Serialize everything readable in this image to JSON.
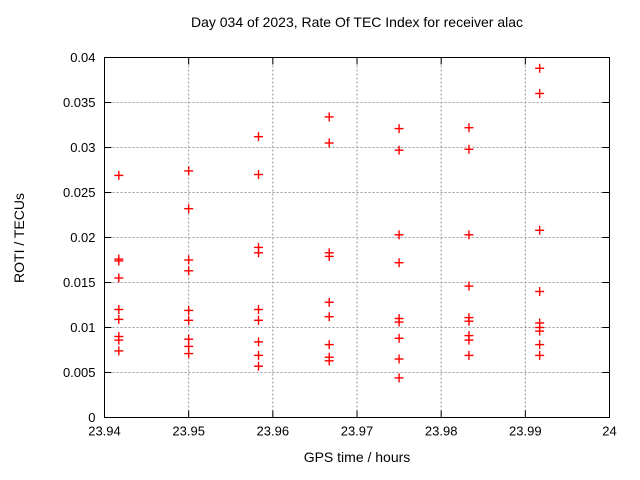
{
  "chart_data": {
    "type": "scatter",
    "title": "Day 034 of 2023, Rate Of TEC Index for receiver alac",
    "xlabel": "GPS time / hours",
    "ylabel": "ROTI / TECUs",
    "xlim": [
      23.94,
      24
    ],
    "ylim": [
      0,
      0.04
    ],
    "xticks": {
      "values": [
        23.94,
        23.95,
        23.96,
        23.97,
        23.98,
        23.99,
        24
      ],
      "labels": [
        "23.94",
        "23.95",
        "23.96",
        "23.97",
        "23.98",
        "23.99",
        "24"
      ]
    },
    "yticks": {
      "values": [
        0,
        0.005,
        0.01,
        0.015,
        0.02,
        0.025,
        0.03,
        0.035,
        0.04
      ],
      "labels": [
        "0",
        "0.005",
        "0.01",
        "0.015",
        "0.02",
        "0.025",
        "0.03",
        "0.035",
        "0.04"
      ]
    },
    "grid": true,
    "legend": "none",
    "marker": "plus",
    "marker_color": "#ff0000",
    "grid_color": "#989898",
    "axis_color": "#000000",
    "series": [
      {
        "name": "ROTI",
        "points": [
          [
            23.9417,
            0.0269
          ],
          [
            23.9417,
            0.0176
          ],
          [
            23.9417,
            0.0174
          ],
          [
            23.9417,
            0.0155
          ],
          [
            23.9417,
            0.012
          ],
          [
            23.9417,
            0.0109
          ],
          [
            23.9417,
            0.009
          ],
          [
            23.9417,
            0.0086
          ],
          [
            23.9417,
            0.0074
          ],
          [
            23.95,
            0.0274
          ],
          [
            23.95,
            0.0232
          ],
          [
            23.95,
            0.0175
          ],
          [
            23.95,
            0.0163
          ],
          [
            23.95,
            0.0119
          ],
          [
            23.95,
            0.0108
          ],
          [
            23.95,
            0.0087
          ],
          [
            23.95,
            0.0079
          ],
          [
            23.95,
            0.0071
          ],
          [
            23.9583,
            0.0312
          ],
          [
            23.9583,
            0.027
          ],
          [
            23.9583,
            0.0189
          ],
          [
            23.9583,
            0.0183
          ],
          [
            23.9583,
            0.012
          ],
          [
            23.9583,
            0.0108
          ],
          [
            23.9583,
            0.0084
          ],
          [
            23.9583,
            0.0069
          ],
          [
            23.9583,
            0.0057
          ],
          [
            23.9667,
            0.0334
          ],
          [
            23.9667,
            0.0305
          ],
          [
            23.9667,
            0.0183
          ],
          [
            23.9667,
            0.0179
          ],
          [
            23.9667,
            0.0128
          ],
          [
            23.9667,
            0.0112
          ],
          [
            23.9667,
            0.0081
          ],
          [
            23.9667,
            0.0067
          ],
          [
            23.9667,
            0.0063
          ],
          [
            23.975,
            0.0321
          ],
          [
            23.975,
            0.0297
          ],
          [
            23.975,
            0.0203
          ],
          [
            23.975,
            0.0172
          ],
          [
            23.975,
            0.011
          ],
          [
            23.975,
            0.0106
          ],
          [
            23.975,
            0.0088
          ],
          [
            23.975,
            0.0065
          ],
          [
            23.975,
            0.0044
          ],
          [
            23.9833,
            0.0322
          ],
          [
            23.9833,
            0.0298
          ],
          [
            23.9833,
            0.0203
          ],
          [
            23.9833,
            0.0146
          ],
          [
            23.9833,
            0.0111
          ],
          [
            23.9833,
            0.0107
          ],
          [
            23.9833,
            0.0091
          ],
          [
            23.9833,
            0.0086
          ],
          [
            23.9833,
            0.0069
          ],
          [
            23.9917,
            0.0388
          ],
          [
            23.9917,
            0.036
          ],
          [
            23.9917,
            0.0208
          ],
          [
            23.9917,
            0.014
          ],
          [
            23.9917,
            0.0105
          ],
          [
            23.9917,
            0.01
          ],
          [
            23.9917,
            0.0096
          ],
          [
            23.9917,
            0.0081
          ],
          [
            23.9917,
            0.0069
          ]
        ]
      }
    ]
  }
}
